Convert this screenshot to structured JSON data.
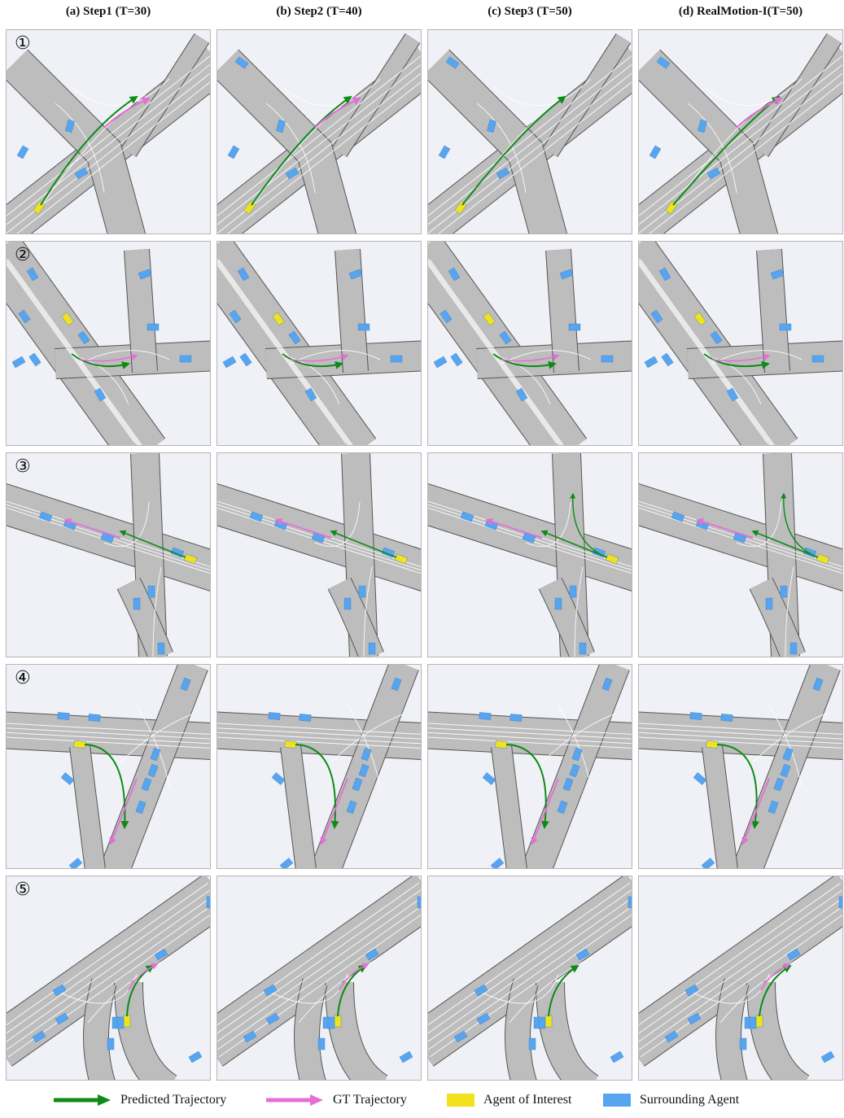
{
  "columns": [
    "(a) Step1 (T=30)",
    "(b) Step2 (T=40)",
    "(c) Step3 (T=50)",
    "(d) RealMotion-I(T=50)"
  ],
  "rows": [
    "①",
    "②",
    "③",
    "④",
    "⑤"
  ],
  "legend": [
    {
      "label": "Predicted Trajectory",
      "kind": "arrow",
      "color": "#0e8a16"
    },
    {
      "label": "GT Trajectory",
      "kind": "arrow",
      "color": "#e46fd6"
    },
    {
      "label": "Agent of Interest",
      "kind": "box",
      "color": "#f2e21d"
    },
    {
      "label": "Surrounding Agent",
      "kind": "box",
      "color": "#57a5f0"
    }
  ],
  "colors": {
    "background": "#eff1f6",
    "road": "#bdbdbd",
    "lane": "#ffffff",
    "predicted": "#0e8a16",
    "gt": "#e46fd6",
    "agent_of_interest": "#f2e21d",
    "surrounding_agent": "#57a5f0"
  }
}
